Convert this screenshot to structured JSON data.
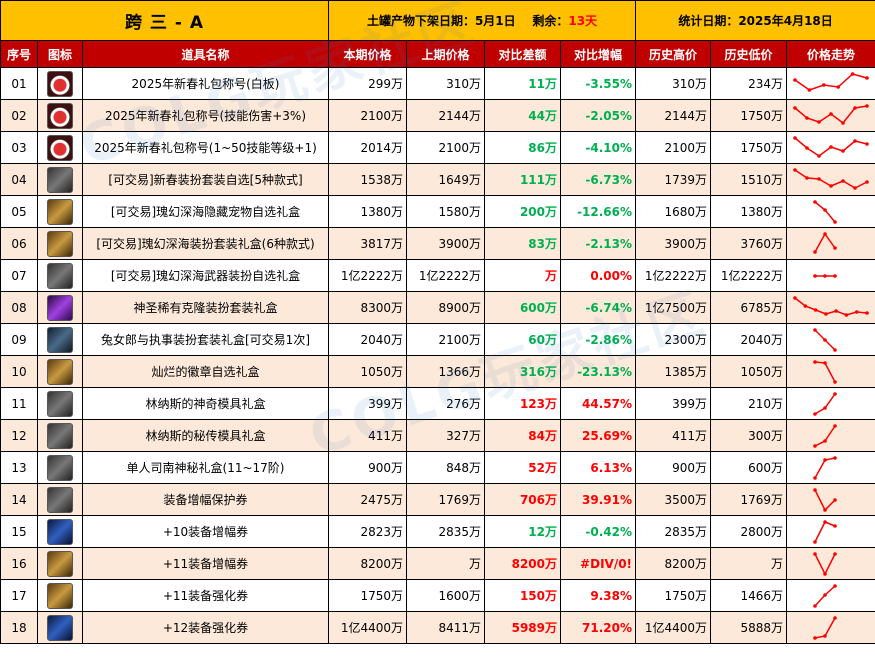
{
  "header": {
    "title": "跨 三 - A",
    "release_label": "土罐产物下架日期：",
    "release_date": "5月1日",
    "remain_label": "剩余：",
    "remain_value": "13天",
    "stat_label": "统计日期：",
    "stat_date": "2025年4月18日"
  },
  "columns": [
    "序号",
    "图标",
    "道具名称",
    "本期价格",
    "上期价格",
    "对比差额",
    "对比增幅",
    "历史高价",
    "历史低价",
    "价格走势"
  ],
  "watermark": "COLG玩家社区",
  "rows": [
    {
      "id": "01",
      "icon": "gift-icon",
      "name": "2025年新春礼包称号(白板)",
      "cur": "299万",
      "prev": "310万",
      "diff": "11万",
      "diff_dir": "down",
      "pct": "-3.55%",
      "hi": "310万",
      "lo": "234万",
      "trend": [
        0.7,
        0.2,
        0.45,
        0.35,
        1.0,
        0.8
      ]
    },
    {
      "id": "02",
      "icon": "gift-icon",
      "name": "2025年新春礼包称号(技能伤害+3%)",
      "cur": "2100万",
      "prev": "2144万",
      "diff": "44万",
      "diff_dir": "down",
      "pct": "-2.05%",
      "hi": "2144万",
      "lo": "1750万",
      "trend": [
        0.9,
        0.4,
        0.2,
        0.6,
        0.15,
        0.9,
        1.0
      ]
    },
    {
      "id": "03",
      "icon": "gift-icon",
      "name": "2025年新春礼包称号(1~50技能等级+1)",
      "cur": "2014万",
      "prev": "2100万",
      "diff": "86万",
      "diff_dir": "down",
      "pct": "-4.10%",
      "hi": "2100万",
      "lo": "1750万",
      "trend": [
        1.0,
        0.5,
        0.1,
        0.55,
        0.35,
        0.85,
        0.7
      ]
    },
    {
      "id": "04",
      "icon": "costume-icon",
      "name": "[可交易]新春装扮套装自选[5种款式]",
      "cur": "1538万",
      "prev": "1649万",
      "diff": "111万",
      "diff_dir": "down",
      "pct": "-6.73%",
      "hi": "1739万",
      "lo": "1510万",
      "trend": [
        1.0,
        0.6,
        0.55,
        0.2,
        0.45,
        0.1,
        0.4
      ]
    },
    {
      "id": "05",
      "icon": "treasure-icon",
      "name": "[可交易]瑰幻深海隐藏宠物自选礼盒",
      "cur": "1380万",
      "prev": "1580万",
      "diff": "200万",
      "diff_dir": "down",
      "pct": "-12.66%",
      "hi": "1680万",
      "lo": "1380万",
      "trend": [
        1.0,
        0.6,
        0.0
      ]
    },
    {
      "id": "06",
      "icon": "treasure-icon",
      "name": "[可交易]瑰幻深海装扮套装礼盒(6种款式)",
      "cur": "3817万",
      "prev": "3900万",
      "diff": "83万",
      "diff_dir": "down",
      "pct": "-2.13%",
      "hi": "3900万",
      "lo": "3760万",
      "trend": [
        0.1,
        1.0,
        0.3
      ]
    },
    {
      "id": "07",
      "icon": "weapon-box-icon",
      "name": "[可交易]瑰幻深海武器装扮自选礼盒",
      "cur": "1亿2222万",
      "prev": "1亿2222万",
      "diff": "万",
      "diff_dir": "up",
      "pct": "0.00%",
      "hi": "1亿2222万",
      "lo": "1亿2222万",
      "trend": [
        0.5,
        0.5,
        0.5
      ]
    },
    {
      "id": "08",
      "icon": "clone-icon",
      "name": "神圣稀有克隆装扮套装礼盒",
      "cur": "8300万",
      "prev": "8900万",
      "diff": "600万",
      "diff_dir": "down",
      "pct": "-6.74%",
      "hi": "1亿7500万",
      "lo": "6785万",
      "trend": [
        1.0,
        0.6,
        0.4,
        0.2,
        0.35,
        0.15,
        0.3,
        0.25
      ]
    },
    {
      "id": "09",
      "icon": "card-icon",
      "name": "兔女郎与执事装扮套装礼盒[可交易1次]",
      "cur": "2040万",
      "prev": "2100万",
      "diff": "60万",
      "diff_dir": "down",
      "pct": "-2.86%",
      "hi": "2300万",
      "lo": "2040万",
      "trend": [
        1.0,
        0.5,
        0.0
      ]
    },
    {
      "id": "10",
      "icon": "badge-box-icon",
      "name": "灿烂的徽章自选礼盒",
      "cur": "1050万",
      "prev": "1366万",
      "diff": "316万",
      "diff_dir": "down",
      "pct": "-23.13%",
      "hi": "1385万",
      "lo": "1050万",
      "trend": [
        1.0,
        0.95,
        0.0
      ]
    },
    {
      "id": "11",
      "icon": "mold-icon",
      "name": "林纳斯的神奇模具礼盒",
      "cur": "399万",
      "prev": "276万",
      "diff": "123万",
      "diff_dir": "up",
      "pct": "44.57%",
      "hi": "399万",
      "lo": "210万",
      "trend": [
        0.0,
        0.3,
        1.0
      ]
    },
    {
      "id": "12",
      "icon": "mold-icon",
      "name": "林纳斯的秘传模具礼盒",
      "cur": "411万",
      "prev": "327万",
      "diff": "84万",
      "diff_dir": "up",
      "pct": "25.69%",
      "hi": "411万",
      "lo": "300万",
      "trend": [
        0.0,
        0.25,
        1.0
      ]
    },
    {
      "id": "13",
      "icon": "key-icon",
      "name": "单人司南神秘礼盒(11~17阶)",
      "cur": "900万",
      "prev": "848万",
      "diff": "52万",
      "diff_dir": "up",
      "pct": "6.13%",
      "hi": "900万",
      "lo": "600万",
      "trend": [
        0.0,
        0.9,
        1.0
      ]
    },
    {
      "id": "14",
      "icon": "scroll-icon",
      "name": "装备增幅保护券",
      "cur": "2475万",
      "prev": "1769万",
      "diff": "706万",
      "diff_dir": "up",
      "pct": "39.91%",
      "hi": "3500万",
      "lo": "1769万",
      "trend": [
        1.0,
        0.0,
        0.5
      ]
    },
    {
      "id": "15",
      "icon": "amplify-10-icon",
      "name": "+10装备增幅券",
      "cur": "2823万",
      "prev": "2835万",
      "diff": "12万",
      "diff_dir": "down",
      "pct": "-0.42%",
      "hi": "2835万",
      "lo": "2800万",
      "trend": [
        0.0,
        1.0,
        0.8
      ]
    },
    {
      "id": "16",
      "icon": "amplify-11-icon",
      "name": "+11装备增幅券",
      "cur": "8200万",
      "prev": "万",
      "diff": "8200万",
      "diff_dir": "up",
      "pct": "#DIV/0!",
      "hi": "8200万",
      "lo": "万",
      "trend": [
        1.0,
        0.0,
        1.0
      ]
    },
    {
      "id": "17",
      "icon": "reinforce-11-icon",
      "name": "+11装备强化券",
      "cur": "1750万",
      "prev": "1600万",
      "diff": "150万",
      "diff_dir": "up",
      "pct": "9.38%",
      "hi": "1750万",
      "lo": "1466万",
      "trend": [
        0.0,
        0.55,
        1.0
      ]
    },
    {
      "id": "18",
      "icon": "reinforce-12-icon",
      "name": "+12装备强化券",
      "cur": "1亿4400万",
      "prev": "8411万",
      "diff": "5989万",
      "diff_dir": "up",
      "pct": "71.20%",
      "hi": "1亿4400万",
      "lo": "5888万",
      "trend": [
        0.0,
        0.1,
        1.0
      ]
    }
  ],
  "colors": {
    "title_bg": "#ffc000",
    "header_bg": "#c00000",
    "row_alt": "#fde9d9",
    "up": "#ff0000",
    "down": "#00b050",
    "trend_line": "#ff0000"
  }
}
